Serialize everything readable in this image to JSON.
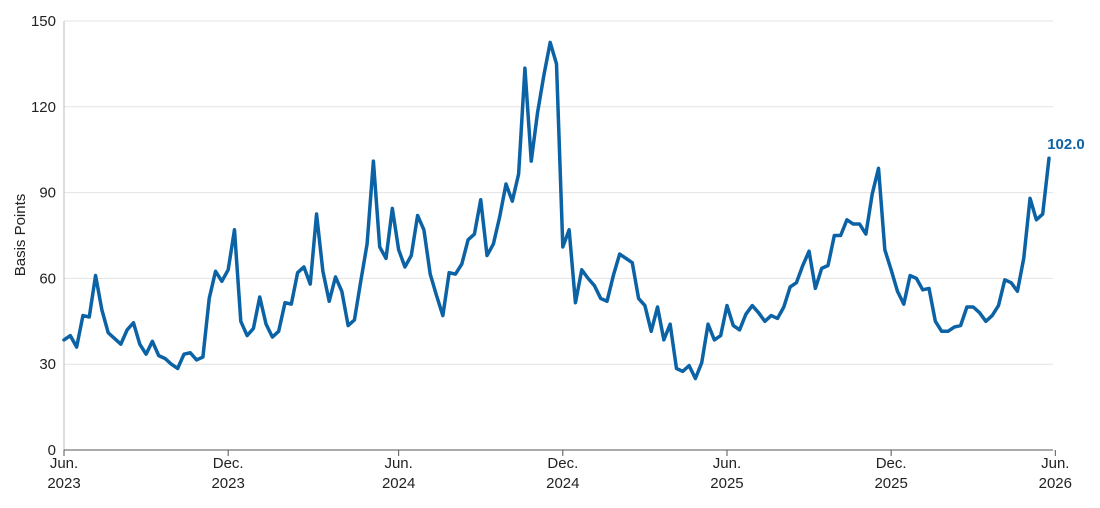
{
  "chart_data": {
    "type": "line",
    "title": "",
    "xlabel": "",
    "ylabel": "Basis Points",
    "ylim": [
      0,
      150
    ],
    "y_ticks": [
      0,
      30,
      60,
      90,
      120,
      150
    ],
    "x_ticks": [
      {
        "line1": "Jun.",
        "line2": "2023",
        "index": 0
      },
      {
        "line1": "Dec.",
        "line2": "2023",
        "index": 26
      },
      {
        "line1": "Jun.",
        "line2": "2024",
        "index": 53
      },
      {
        "line1": "Dec.",
        "line2": "2024",
        "index": 79
      },
      {
        "line1": "Jun.",
        "line2": "2025",
        "index": 105
      },
      {
        "line1": "Dec.",
        "line2": "2025",
        "index": 131
      },
      {
        "line1": "Jun.",
        "line2": "2026",
        "index": 157
      }
    ],
    "grid": "horizontal",
    "line_color": "#0B63A5",
    "end_label": "102.0",
    "series": [
      {
        "name": "",
        "values": [
          38.5,
          40,
          36,
          47,
          46.5,
          61,
          49,
          41,
          39,
          37,
          42,
          44.5,
          37,
          33.5,
          38,
          33,
          32,
          30,
          28.5,
          33.5,
          34,
          31.5,
          32.5,
          53,
          62.5,
          59,
          63,
          77,
          45,
          40,
          42.5,
          53.5,
          44,
          39.5,
          41.5,
          51.5,
          51,
          62,
          64,
          58,
          82.5,
          62.5,
          52,
          60.5,
          55.5,
          43.5,
          45.5,
          59,
          72,
          101,
          71,
          67,
          84.5,
          70,
          64,
          68,
          82,
          77,
          61.5,
          54,
          47,
          62,
          61.5,
          65,
          73.5,
          75.5,
          87.5,
          68,
          72,
          81.5,
          93,
          87,
          96.5,
          133.5,
          101,
          118,
          131,
          142.5,
          135,
          71,
          77,
          51.5,
          63,
          60,
          57.5,
          53,
          52,
          61,
          68.5,
          67,
          65.5,
          53,
          50.5,
          41.5,
          50,
          38.5,
          44,
          28.5,
          27.5,
          29.5,
          25,
          30.5,
          44,
          38.5,
          40,
          50.5,
          43.5,
          42,
          47.5,
          50.5,
          48,
          45,
          47,
          46,
          50,
          57,
          58.5,
          64.5,
          69.5,
          56.5,
          63.5,
          64.5,
          75,
          75,
          80.5,
          79,
          79,
          75.5,
          89.5,
          98.5,
          70,
          63,
          55.5,
          51,
          61,
          60,
          56,
          56.5,
          45,
          41.5,
          41.5,
          43,
          43.5,
          50,
          50,
          48,
          45,
          47,
          50.5,
          59.5,
          58.5,
          55.5,
          67,
          88,
          80.5,
          82.5,
          102
        ]
      }
    ]
  }
}
